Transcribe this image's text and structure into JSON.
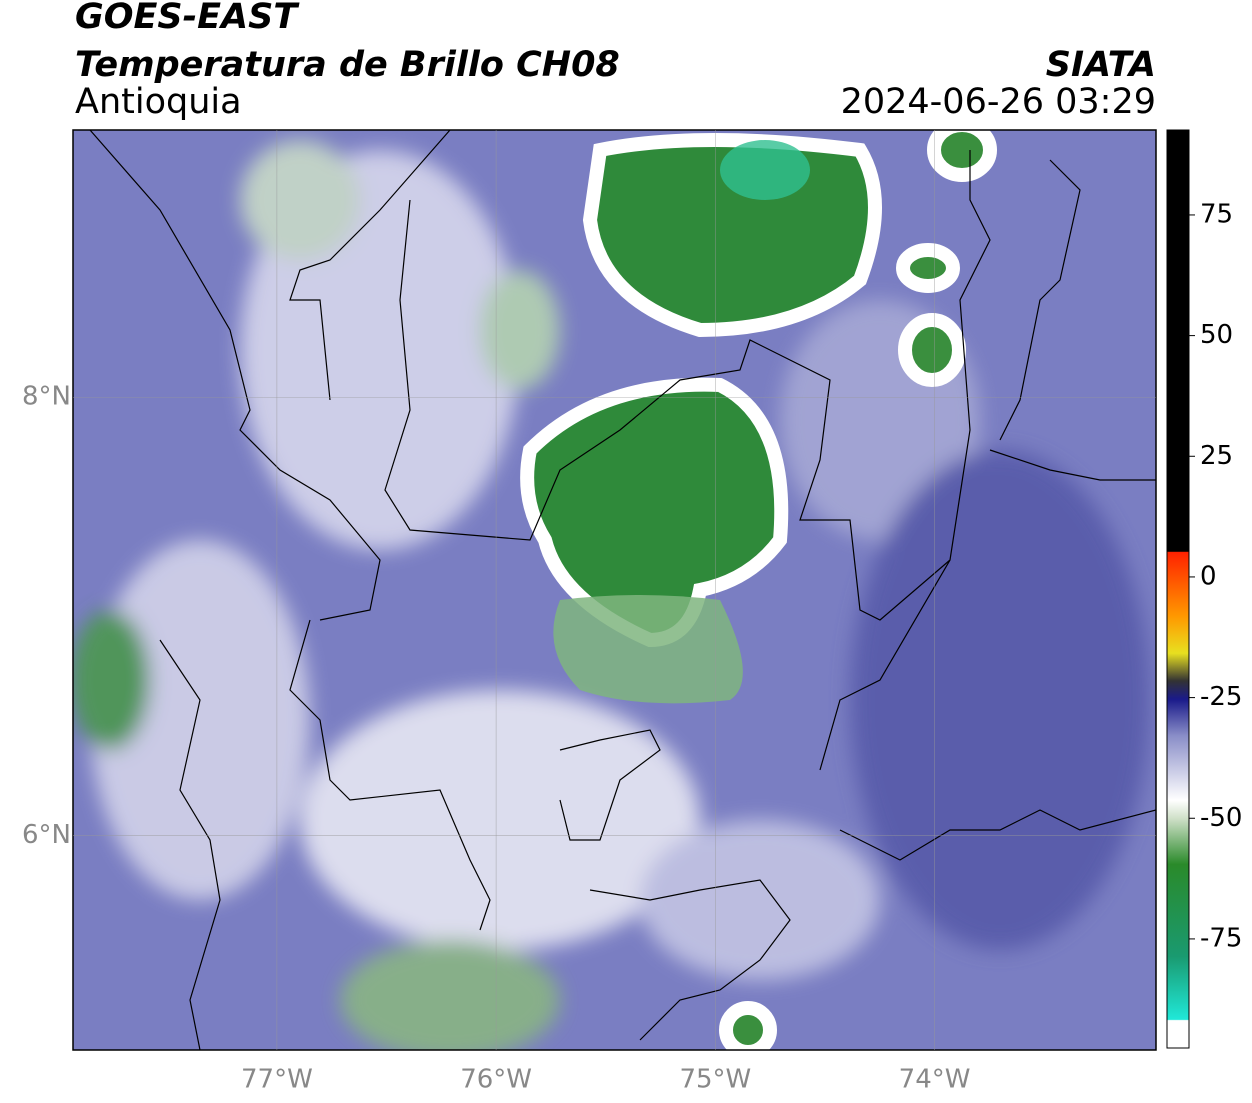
{
  "header": {
    "satellite": "GOES-EAST",
    "product": "Temperatura de Brillo CH08",
    "region": "Antioquia",
    "source": "SIATA",
    "datetime": "2024-06-26 03:29"
  },
  "map": {
    "lonlim": [
      -77.93,
      -72.99
    ],
    "latlim": [
      5.02,
      9.22
    ],
    "lonticks": [
      {
        "value": -77,
        "label": "77°W"
      },
      {
        "value": -76,
        "label": "76°W"
      },
      {
        "value": -75,
        "label": "75°W"
      },
      {
        "value": -74,
        "label": "74°W"
      }
    ],
    "latticks": [
      {
        "value": 8,
        "label": "8°N"
      },
      {
        "value": 6,
        "label": "6°N"
      }
    ],
    "grid": true
  },
  "colorbar": {
    "lim": [
      -97.6,
      92.6
    ],
    "ticks": [
      75,
      50,
      25,
      0,
      -25,
      -50,
      -75
    ]
  }
}
